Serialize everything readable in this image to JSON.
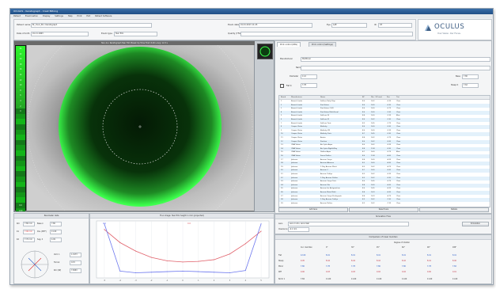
{
  "window": {
    "title": "OCULUS - Keratograph - Crest Biltong"
  },
  "menu": [
    "Patient",
    "Examination",
    "Display",
    "Settings",
    "Help",
    "Print",
    "Exit",
    "Patient Software"
  ],
  "patient": {
    "name_label": "Patient name",
    "name_value": "Br_Yovic_B1 / Keratograph",
    "dob_label": "Date of birth",
    "dob_value": "01.11.1963",
    "exam_label": "Exam date",
    "exam_value": "01.01.2013 11:45",
    "eye_label": "Eye",
    "eye_value": "Left",
    "id_label": "ID",
    "id_value": "03",
    "type_label": "Exam type",
    "type_value": "Tear film",
    "notes_label": "Quality (TFG)",
    "notes_value": ""
  },
  "brand": {
    "name": "OCULUS",
    "tagline": "Your Vision. Our Focus."
  },
  "image_view": {
    "header": "Non-Inv. Keratograph Tear Film Break Up Time   First: 8.40 s   Avg: 12.3 s",
    "scale": [
      "24",
      "22",
      "20",
      "18",
      "16",
      "14",
      "12",
      "10",
      "8",
      "6",
      "4",
      "2",
      "0",
      "",
      "",
      "",
      "",
      "",
      "",
      "",
      "",
      "",
      "",
      "",
      "",
      "",
      "",
      "",
      "",
      "",
      "0.0",
      "1.00"
    ]
  },
  "colors": {
    "accent": "#3d5d83",
    "series_red": "#e0606a",
    "series_blue": "#6d78ee",
    "green": "#39ff4a"
  },
  "tabs": [
    "Print control (RSS)",
    "Print control (Settings)"
  ],
  "filters": {
    "manufacturer_label": "Manufacturer",
    "manufacturer_value": "Multifocal",
    "name_label": "Name",
    "name_value": "",
    "diameter_label": "Diameter",
    "diameter_value": "11.0",
    "base_label": "Base",
    "base_value": "7.80",
    "flatk_label": "Flat K",
    "flatk_value": "7.78",
    "steepk_label": "Steep K",
    "steepk_value": "7.62"
  },
  "table": {
    "headers": [
      "Brand",
      "Manufacturer",
      "Name",
      "BC",
      "Dia. / Ø (mm)",
      "Pwr",
      "Tint"
    ],
    "rows": [
      [
        "1",
        "Bausch Lomb",
        "Soflens Daily Disp.",
        "8.6",
        "14.2",
        "-0.25",
        "Clear"
      ],
      [
        "2",
        "Bausch Lomb",
        "PureVision",
        "8.6",
        "14.0",
        "-0.50",
        "Clear"
      ],
      [
        "3",
        "Bausch Lomb",
        "PureVision 2 HD",
        "8.6",
        "14.0",
        "-0.75",
        "Clear"
      ],
      [
        "4",
        "Bausch Lomb",
        "PureVision Multi-Focal",
        "8.6",
        "14.0",
        "-1.00",
        "Clear"
      ],
      [
        "5",
        "Bausch Lomb",
        "SofLens 38",
        "8.4",
        "14.0",
        "-1.25",
        "Blue"
      ],
      [
        "6",
        "Bausch Lomb",
        "SofLens 59",
        "8.6",
        "14.2",
        "-1.50",
        "Clear"
      ],
      [
        "7",
        "Bausch Lomb",
        "SofLens Toric",
        "8.5",
        "14.5",
        "-1.75",
        "Clear"
      ],
      [
        "8",
        "Cooper Vision",
        "Biofinity",
        "8.6",
        "14.0",
        "-2.00",
        "Clear"
      ],
      [
        "9",
        "Cooper Vision",
        "Biofinity XR",
        "8.6",
        "14.0",
        "-2.25",
        "Clear"
      ],
      [
        "10",
        "Cooper Vision",
        "Biofinity Toric",
        "8.7",
        "14.5",
        "-2.50",
        "Clear"
      ],
      [
        "11",
        "Cooper Vision",
        "Avaira",
        "8.4",
        "14.2",
        "-2.75",
        "Clear"
      ],
      [
        "12",
        "Cooper Vision",
        "Proclear",
        "8.6",
        "14.2",
        "-3.00",
        "Clear"
      ],
      [
        "13",
        "CIBA Vision",
        "Air Optix Aqua",
        "8.6",
        "14.2",
        "-3.25",
        "Clear"
      ],
      [
        "14",
        "CIBA Vision",
        "Air Optix Night&Day",
        "8.4",
        "13.8",
        "-3.50",
        "Clear"
      ],
      [
        "15",
        "CIBA Vision",
        "Dailies Aqua",
        "8.7",
        "14.0",
        "-3.75",
        "Blue"
      ],
      [
        "16",
        "CIBA Vision",
        "Focus Dailies",
        "8.6",
        "13.8",
        "-4.00",
        "Clear"
      ],
      [
        "17",
        "Johnson",
        "Acuvue Oasys",
        "8.4",
        "14.0",
        "-4.25",
        "Clear"
      ],
      [
        "18",
        "Johnson",
        "Acuvue Advance",
        "8.3",
        "14.0",
        "-4.50",
        "Clear"
      ],
      [
        "19",
        "Johnson",
        "1-Day Acuvue Moist",
        "8.5",
        "14.2",
        "-4.75",
        "Clear"
      ],
      [
        "20",
        "Johnson",
        "Acuvue 2",
        "8.7",
        "14.0",
        "-5.00",
        "Clear"
      ],
      [
        "21",
        "Johnson",
        "Acuvue TruEye",
        "8.5",
        "14.2",
        "-5.25",
        "Clear"
      ],
      [
        "22",
        "Johnson",
        "1-Day Acuvue Define",
        "8.5",
        "14.2",
        "-5.50",
        "Clear"
      ],
      [
        "23",
        "Johnson",
        "Acuvue Oasys Toric",
        "8.6",
        "14.5",
        "-5.75",
        "Clear"
      ],
      [
        "24",
        "Johnson",
        "Acuvue Vita",
        "8.4",
        "14.0",
        "-6.00",
        "Clear"
      ],
      [
        "25",
        "Johnson",
        "Acuvue for Astigmatism",
        "8.6",
        "14.5",
        "-6.25",
        "Clear"
      ],
      [
        "26",
        "Johnson",
        "Acuvue Moist Multi",
        "8.4",
        "14.3",
        "-6.50",
        "Clear"
      ],
      [
        "27",
        "Johnson",
        "Acuvue Oasys Presbyopia",
        "8.4",
        "14.3",
        "-6.75",
        "Clear"
      ],
      [
        "28",
        "Johnson",
        "1-Day Acuvue TruEye",
        "8.5",
        "14.2",
        "-7.00",
        "Clear"
      ],
      [
        "29",
        "Johnson",
        "Acuvue Define",
        "8.5",
        "14.2",
        "-7.25",
        "Clear"
      ]
    ]
  },
  "buttons": {
    "add": "Add lens",
    "select": "Select lens",
    "details": "Details"
  },
  "params": {
    "title": "Parameter data",
    "rows": [
      {
        "l1": "Rm",
        "v1": "7.80 mm",
        "l2": "Base k",
        "v2": "7.80"
      },
      {
        "l1": "K1",
        "v1": "7.90 mm",
        "l2": "Dia. (MTF)",
        "v2": "11.00"
      },
      {
        "l1": "K2",
        "v1": "7.70 mm",
        "l2": "Sag. h",
        "v2": "4.09"
      }
    ],
    "cross": {
      "l1": "Vert. 1",
      "v1": "1.0173",
      "l2": "Torical",
      "v2": "0.15",
      "l3": "Rm (SP)",
      "v3": "7.8263"
    }
  },
  "chart_data": {
    "type": "line",
    "title": "Fluo image: Tear film height in mm (projected)",
    "x": [
      -5,
      -4,
      -3,
      -2,
      -1,
      0,
      1,
      2,
      3,
      4,
      5
    ],
    "xlim": [
      -5.5,
      5.5
    ],
    "ylim": [
      0,
      1
    ],
    "series": [
      {
        "name": "",
        "color": "#e0606a",
        "values": [
          0.85,
          0.62,
          0.47,
          0.36,
          0.3,
          0.28,
          0.29,
          0.32,
          0.42,
          0.6,
          0.82
        ]
      },
      {
        "name": "",
        "color": "#6d78ee",
        "values": [
          0.95,
          0.12,
          0.09,
          0.1,
          0.11,
          0.12,
          0.11,
          0.1,
          0.09,
          0.13,
          0.95
        ]
      }
    ],
    "markers": [
      "0.0",
      "0.0"
    ]
  },
  "diagnosis": {
    "title": "Simulation Flow",
    "row1_label": "Lens",
    "row1_value": "Lens in situ, Lens ideal",
    "row2_label": "Clearance",
    "row2_value": "-0.1 mm",
    "button": "Simulation"
  },
  "results": {
    "title": "Comparison of lower meridian",
    "group_header": "Degree of rotation",
    "col_headers": [
      "",
      "Cur. meridian",
      "0°",
      "30°",
      "45°",
      "60°",
      "90°",
      "180°"
    ],
    "rows": [
      [
        "Flat",
        "12.00",
        "8.41",
        "8.41",
        "8.41",
        "8.41",
        "8.41",
        "8.41"
      ],
      [
        "Steep",
        "9.45",
        "8.44",
        "8.44",
        "8.42",
        "8.42",
        "8.41",
        "8.40"
      ],
      [
        "Minor",
        "7.80",
        "7.78",
        "7.78",
        "7.80",
        "7.80",
        "7.78",
        "7.82"
      ],
      [
        "Diff",
        "0.00",
        "0.03",
        "0.03",
        "0.02",
        "0.02",
        "0.00",
        "0.01"
      ]
    ],
    "footer": [
      "Norm 1",
      "7.84",
      "11.60",
      "11.60",
      "11.60",
      "11.60",
      "11.60",
      "11.60"
    ]
  }
}
